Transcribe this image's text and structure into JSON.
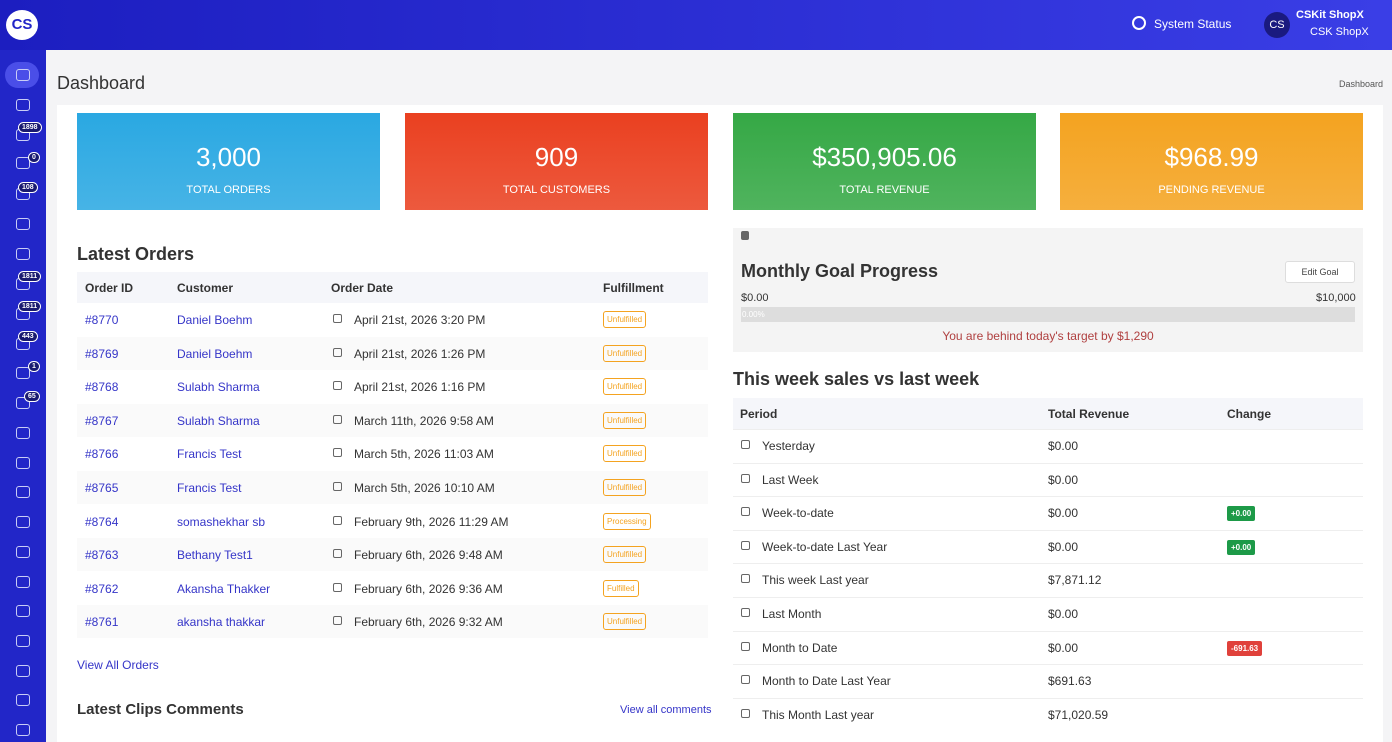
{
  "header": {
    "logo": "CS",
    "system_status": "System Status",
    "user_initials": "CS",
    "user_name": "CSKit ShopX",
    "user_store": "CSK ShopX"
  },
  "sidebar": {
    "badges": [
      "1898",
      "0",
      "108",
      "1811",
      "1811",
      "443",
      "1",
      "65"
    ]
  },
  "page": {
    "title": "Dashboard",
    "breadcrumb": "Dashboard"
  },
  "stats": [
    {
      "value": "3,000",
      "label": "TOTAL ORDERS",
      "color": "#2aa8e2"
    },
    {
      "value": "909",
      "label": "TOTAL CUSTOMERS",
      "color": "#ea4020"
    },
    {
      "value": "$350,905.06",
      "label": "TOTAL REVENUE",
      "color": "#35a845"
    },
    {
      "value": "$968.99",
      "label": "PENDING REVENUE",
      "color": "#f4a320"
    }
  ],
  "latest_orders": {
    "title": "Latest Orders",
    "columns": [
      "Order ID",
      "Customer",
      "Order Date",
      "Fulfillment"
    ],
    "rows": [
      [
        "#8770",
        "Daniel Boehm",
        "April 21st, 2026 3:20 PM",
        "Unfulfilled"
      ],
      [
        "#8769",
        "Daniel Boehm",
        "April 21st, 2026 1:26 PM",
        "Unfulfilled"
      ],
      [
        "#8768",
        "Sulabh Sharma",
        "April 21st, 2026 1:16 PM",
        "Unfulfilled"
      ],
      [
        "#8767",
        "Sulabh Sharma",
        "March 11th, 2026 9:58 AM",
        "Unfulfilled"
      ],
      [
        "#8766",
        "Francis Test",
        "March 5th, 2026 11:03 AM",
        "Unfulfilled"
      ],
      [
        "#8765",
        "Francis Test",
        "March 5th, 2026 10:10 AM",
        "Unfulfilled"
      ],
      [
        "#8764",
        "somashekhar sb",
        "February 9th, 2026 11:29 AM",
        "Processing"
      ],
      [
        "#8763",
        "Bethany Test1",
        "February 6th, 2026 9:48 AM",
        "Unfulfilled"
      ],
      [
        "#8762",
        "Akansha Thakker",
        "February 6th, 2026 9:36 AM",
        "Fulfilled"
      ],
      [
        "#8761",
        "akansha thakkar",
        "February 6th, 2026 9:32 AM",
        "Unfulfilled"
      ]
    ],
    "view_all": "View All Orders"
  },
  "comments": {
    "title": "Latest Clips Comments",
    "view_all": "View all comments"
  },
  "goal": {
    "title": "Monthly Goal Progress",
    "edit": "Edit Goal",
    "min": "$0.00",
    "max": "$10,000",
    "progress": "0.00%",
    "message": "You are behind today's target by $1,290"
  },
  "weekly": {
    "title": "This week sales vs last week",
    "columns": [
      "Period",
      "Total Revenue",
      "Change"
    ],
    "rows": [
      {
        "period": "Yesterday",
        "revenue": "$0.00",
        "change": null,
        "change_color": null
      },
      {
        "period": "Last Week",
        "revenue": "$0.00",
        "change": null,
        "change_color": null
      },
      {
        "period": "Week-to-date",
        "revenue": "$0.00",
        "change": "+0.00",
        "change_color": "#1d9a48"
      },
      {
        "period": "Week-to-date Last Year",
        "revenue": "$0.00",
        "change": "+0.00",
        "change_color": "#1d9a48"
      },
      {
        "period": "This week Last year",
        "revenue": "$7,871.12",
        "change": null,
        "change_color": null
      },
      {
        "period": "Last Month",
        "revenue": "$0.00",
        "change": null,
        "change_color": null
      },
      {
        "period": "Month to Date",
        "revenue": "$0.00",
        "change": "-691.63",
        "change_color": "#e0413b"
      },
      {
        "period": "Month to Date Last Year",
        "revenue": "$691.63",
        "change": null,
        "change_color": null
      },
      {
        "period": "This Month Last year",
        "revenue": "$71,020.59",
        "change": null,
        "change_color": null
      }
    ]
  }
}
